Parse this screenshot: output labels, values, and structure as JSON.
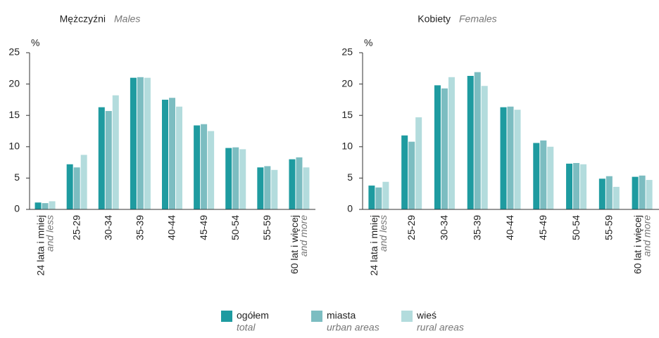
{
  "chart_data": [
    {
      "type": "bar",
      "title": "Mężczyźni",
      "subtitle": "Males",
      "ylabel": "%",
      "categories": [
        "24 lata i mniej",
        "25-29",
        "30-34",
        "35-39",
        "40-44",
        "45-49",
        "50-54",
        "55-59",
        "60 lat i więcej"
      ],
      "categories_en": [
        "and less",
        null,
        null,
        null,
        null,
        null,
        null,
        null,
        "and more"
      ],
      "ylim": [
        0,
        25
      ],
      "yticks": [
        0,
        5,
        10,
        15,
        20,
        25
      ],
      "series": [
        {
          "name": "ogółem",
          "name_en": "total",
          "color": "#1e9ba0",
          "values": [
            1.1,
            7.2,
            16.3,
            21.0,
            17.5,
            13.4,
            9.8,
            6.7,
            8.0
          ]
        },
        {
          "name": "miasta",
          "name_en": "urban areas",
          "color": "#7cbdc1",
          "values": [
            1.0,
            6.7,
            15.7,
            21.1,
            17.8,
            13.6,
            9.9,
            6.9,
            8.3
          ]
        },
        {
          "name": "wieś",
          "name_en": "rural areas",
          "color": "#b3dcdd",
          "values": [
            1.3,
            8.7,
            18.2,
            21.0,
            16.4,
            12.5,
            9.6,
            6.3,
            6.7
          ]
        }
      ]
    },
    {
      "type": "bar",
      "title": "Kobiety",
      "subtitle": "Females",
      "ylabel": "%",
      "categories": [
        "24 lata i mniej",
        "25-29",
        "30-34",
        "35-39",
        "40-44",
        "45-49",
        "50-54",
        "55-59",
        "60 lat i więcej"
      ],
      "categories_en": [
        "and less",
        null,
        null,
        null,
        null,
        null,
        null,
        null,
        "and more"
      ],
      "ylim": [
        0,
        25
      ],
      "yticks": [
        0,
        5,
        10,
        15,
        20,
        25
      ],
      "series": [
        {
          "color": "#1e9ba0",
          "values": [
            3.8,
            11.8,
            19.8,
            21.3,
            16.3,
            10.6,
            7.3,
            4.9,
            5.2
          ]
        },
        {
          "color": "#7cbdc1",
          "values": [
            3.5,
            10.8,
            19.3,
            21.9,
            16.4,
            11.0,
            7.4,
            5.3,
            5.4
          ]
        },
        {
          "color": "#b3dcdd",
          "values": [
            4.4,
            14.7,
            21.1,
            19.7,
            15.9,
            10.0,
            7.2,
            3.6,
            4.7
          ]
        }
      ]
    }
  ]
}
